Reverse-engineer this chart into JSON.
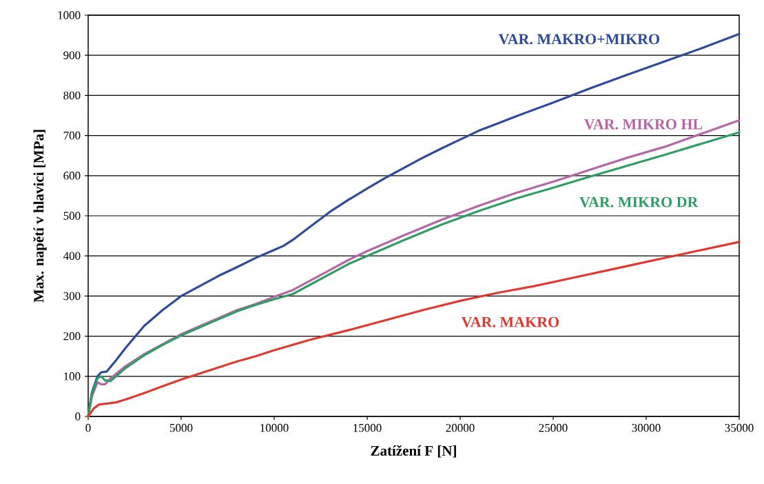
{
  "chart_data": {
    "type": "line",
    "xlabel": "Zatížení F [N]",
    "ylabel": "Max. napětí v hlavici [MPa]",
    "xlim": [
      0,
      35000
    ],
    "ylim": [
      0,
      1000
    ],
    "xticks": [
      0,
      5000,
      10000,
      15000,
      20000,
      25000,
      30000,
      35000
    ],
    "yticks": [
      0,
      100,
      200,
      300,
      400,
      500,
      600,
      700,
      800,
      900,
      1000
    ],
    "grid": "y",
    "line_style": "solid",
    "series": [
      {
        "name": "VAR. MAKRO+MIKRO",
        "color": "#2e4a9a",
        "x": [
          0,
          200,
          500,
          700,
          1000,
          1500,
          2000,
          3000,
          4000,
          5000,
          6000,
          7000,
          8000,
          9000,
          10000,
          10500,
          11000,
          12000,
          13000,
          14000,
          15000,
          16000,
          17000,
          18000,
          19000,
          20000,
          21000,
          22000,
          23000,
          25000,
          27000,
          29000,
          31000,
          33000,
          35000
        ],
        "values": [
          0,
          60,
          100,
          110,
          112,
          140,
          170,
          225,
          265,
          300,
          325,
          350,
          372,
          395,
          415,
          425,
          440,
          475,
          510,
          540,
          568,
          595,
          620,
          645,
          668,
          690,
          712,
          730,
          748,
          782,
          818,
          852,
          885,
          918,
          953
        ]
      },
      {
        "name": "VAR. MIKRO HL",
        "color": "#b666a8",
        "x": [
          0,
          200,
          500,
          700,
          900,
          1200,
          2000,
          3000,
          4000,
          5000,
          6000,
          7000,
          8000,
          9000,
          10000,
          11000,
          12000,
          13000,
          14000,
          15000,
          17000,
          19000,
          21000,
          23000,
          25000,
          27000,
          29000,
          31000,
          33000,
          35000
        ],
        "values": [
          0,
          50,
          85,
          80,
          80,
          95,
          125,
          155,
          180,
          205,
          225,
          245,
          265,
          280,
          298,
          315,
          340,
          365,
          390,
          412,
          452,
          490,
          525,
          557,
          585,
          615,
          645,
          672,
          705,
          738
        ]
      },
      {
        "name": "VAR. MIKRO DR",
        "color": "#2e9e64",
        "x": [
          0,
          200,
          500,
          700,
          900,
          1200,
          2000,
          3000,
          4000,
          5000,
          6000,
          7000,
          8000,
          9000,
          10000,
          11000,
          12000,
          13000,
          14000,
          15000,
          17000,
          19000,
          21000,
          23000,
          25000,
          27000,
          29000,
          31000,
          33000,
          35000
        ],
        "values": [
          0,
          55,
          95,
          100,
          90,
          88,
          120,
          152,
          178,
          202,
          222,
          242,
          262,
          278,
          292,
          305,
          330,
          355,
          380,
          400,
          440,
          478,
          512,
          543,
          570,
          598,
          625,
          652,
          680,
          708
        ]
      },
      {
        "name": "VAR. MAKRO",
        "color": "#e03a30",
        "x": [
          0,
          300,
          600,
          1000,
          1500,
          2000,
          3000,
          4000,
          5000,
          6000,
          7000,
          8000,
          9000,
          10000,
          12000,
          14000,
          16000,
          18000,
          20000,
          22000,
          24000,
          26000,
          28000,
          30000,
          32000,
          35000
        ],
        "values": [
          0,
          20,
          30,
          32,
          35,
          42,
          58,
          75,
          92,
          107,
          122,
          137,
          150,
          165,
          192,
          215,
          240,
          265,
          288,
          308,
          325,
          345,
          365,
          385,
          405,
          435
        ]
      }
    ]
  }
}
